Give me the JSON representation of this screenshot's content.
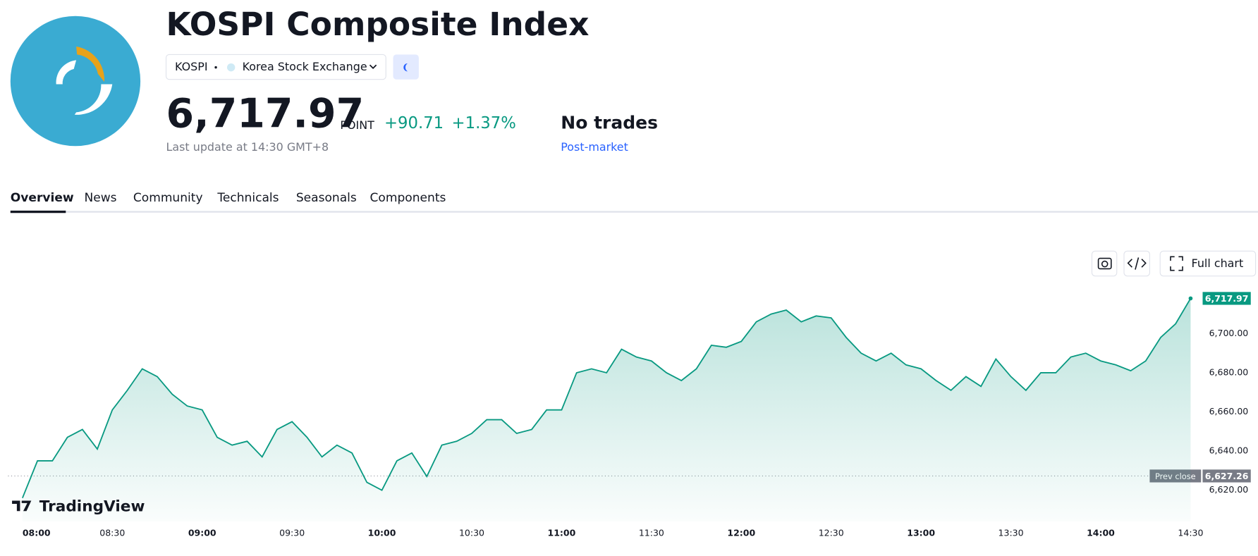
{
  "header": {
    "title": "KOSPI Composite Index",
    "ticker": "KOSPI",
    "exchange": "Korea Stock Exchange",
    "unit": "POINT",
    "change": "+90.71",
    "change_pct": "+1.37%",
    "update": "Last update at 14:30 GMT+8",
    "status": "No trades",
    "session": "Post-market"
  },
  "tabs": [
    "Overview",
    "News",
    "Community",
    "Technicals",
    "Seasonals",
    "Components"
  ],
  "toolbar": {
    "full_chart": "Full chart"
  },
  "brand": "TradingView",
  "chart_data": {
    "type": "area",
    "color": "#089981",
    "x": [
      "08:00",
      "08:05",
      "08:10",
      "08:15",
      "08:20",
      "08:25",
      "08:30",
      "08:35",
      "08:40",
      "08:45",
      "08:50",
      "08:55",
      "09:00",
      "09:05",
      "09:10",
      "09:15",
      "09:20",
      "09:25",
      "09:30",
      "09:35",
      "09:40",
      "09:45",
      "09:50",
      "09:55",
      "10:00",
      "10:05",
      "10:10",
      "10:15",
      "10:20",
      "10:25",
      "10:30",
      "10:35",
      "10:40",
      "10:45",
      "10:50",
      "10:55",
      "11:00",
      "11:05",
      "11:10",
      "11:15",
      "11:20",
      "11:25",
      "11:30",
      "11:35",
      "11:40",
      "11:45",
      "11:50",
      "11:55",
      "12:00",
      "12:05",
      "12:10",
      "12:15",
      "12:20",
      "12:25",
      "12:30",
      "12:35",
      "12:40",
      "12:45",
      "12:50",
      "12:55",
      "13:00",
      "13:05",
      "13:10",
      "13:15",
      "13:20",
      "13:25",
      "13:30",
      "13:35",
      "13:40",
      "13:45",
      "13:50",
      "13:55",
      "14:00",
      "14:05",
      "14:10",
      "14:15",
      "14:20",
      "14:25",
      "14:30"
    ],
    "values": [
      6616,
      6635,
      6635,
      6647,
      6651,
      6641,
      6661,
      6671,
      6682,
      6678,
      6669,
      6663,
      6661,
      6647,
      6643,
      6645,
      6637,
      6651,
      6655,
      6647,
      6637,
      6643,
      6639,
      6624,
      6620,
      6635,
      6639,
      6627,
      6643,
      6645,
      6649,
      6656,
      6656,
      6649,
      6651,
      6661,
      6661,
      6680,
      6682,
      6680,
      6692,
      6688,
      6686,
      6680,
      6676,
      6682,
      6694,
      6693,
      6696,
      6706,
      6710,
      6712,
      6706,
      6709,
      6708,
      6698,
      6690,
      6686,
      6690,
      6684,
      6682,
      6676,
      6671,
      6678,
      6673,
      6687,
      6678,
      6671,
      6680,
      6680,
      6688,
      6690,
      6686,
      6684,
      6681,
      6686,
      6698,
      6705,
      6717.97
    ],
    "last_label": "6,717.97",
    "prev_close": 6627.26,
    "prev_close_label": "6,627.26",
    "prev_close_name": "Prev close",
    "xlim": [
      "08:00",
      "14:30"
    ],
    "xticks": [
      "08:00",
      "08:30",
      "09:00",
      "09:30",
      "10:00",
      "10:30",
      "11:00",
      "11:30",
      "12:00",
      "12:30",
      "13:00",
      "13:30",
      "14:00",
      "14:30"
    ],
    "ylim": [
      6604,
      6729
    ],
    "yticks": [
      {
        "value": 6620,
        "label": "6,620.00"
      },
      {
        "value": 6640,
        "label": "6,640.00"
      },
      {
        "value": 6660,
        "label": "6,660.00"
      },
      {
        "value": 6680,
        "label": "6,680.00"
      },
      {
        "value": 6700,
        "label": "6,700.00"
      }
    ]
  }
}
